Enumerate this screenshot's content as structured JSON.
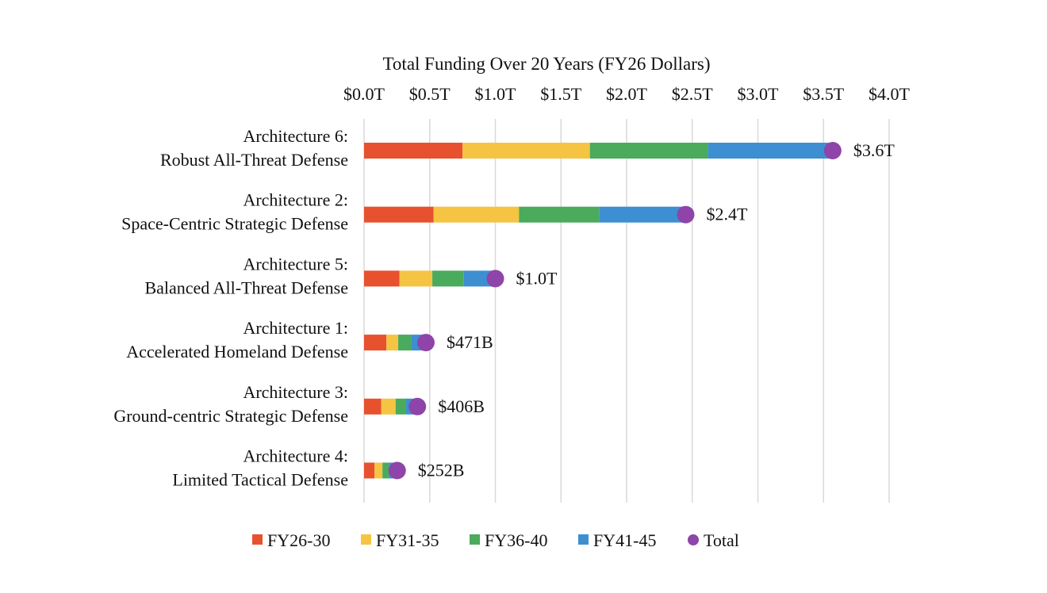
{
  "chart_data": {
    "type": "bar",
    "stacked": true,
    "orientation": "horizontal",
    "title": "Total Funding Over 20 Years (FY26 Dollars)",
    "x_axis_position": "top",
    "xlim": [
      0,
      4.0
    ],
    "x_ticks": [
      0,
      0.5,
      1.0,
      1.5,
      2.0,
      2.5,
      3.0,
      3.5,
      4.0
    ],
    "x_tick_labels": [
      "$0.0T",
      "$0.5T",
      "$1.0T",
      "$1.5T",
      "$2.0T",
      "$2.5T",
      "$3.0T",
      "$3.5T",
      "$4.0T"
    ],
    "grid": "vertical",
    "legend_position": "bottom",
    "categories": [
      [
        "Architecture 6:",
        "Robust All-Threat Defense"
      ],
      [
        "Architecture 2:",
        "Space-Centric Strategic Defense"
      ],
      [
        "Architecture 5:",
        "Balanced All-Threat Defense"
      ],
      [
        "Architecture 1:",
        "Accelerated Homeland Defense"
      ],
      [
        "Architecture 3:",
        "Ground-centric Strategic Defense"
      ],
      [
        "Architecture 4:",
        "Limited Tactical Defense"
      ]
    ],
    "series": [
      {
        "name": "FY26-30",
        "color": "#e8512e",
        "values": [
          0.75,
          0.53,
          0.27,
          0.17,
          0.13,
          0.08
        ]
      },
      {
        "name": "FY31-35",
        "color": "#f6c443",
        "values": [
          0.97,
          0.65,
          0.25,
          0.09,
          0.11,
          0.06
        ]
      },
      {
        "name": "FY36-40",
        "color": "#4aab5c",
        "values": [
          0.9,
          0.61,
          0.24,
          0.1,
          0.08,
          0.05
        ]
      },
      {
        "name": "FY41-45",
        "color": "#3d8fd1",
        "values": [
          0.95,
          0.66,
          0.24,
          0.111,
          0.086,
          0.062
        ]
      }
    ],
    "total": {
      "name": "Total",
      "color": "#8e44a8",
      "values": [
        3.57,
        2.45,
        1.0,
        0.471,
        0.406,
        0.252
      ],
      "labels": [
        "$3.6T",
        "$2.4T",
        "$1.0T",
        "$471B",
        "$406B",
        "$252B"
      ]
    }
  }
}
